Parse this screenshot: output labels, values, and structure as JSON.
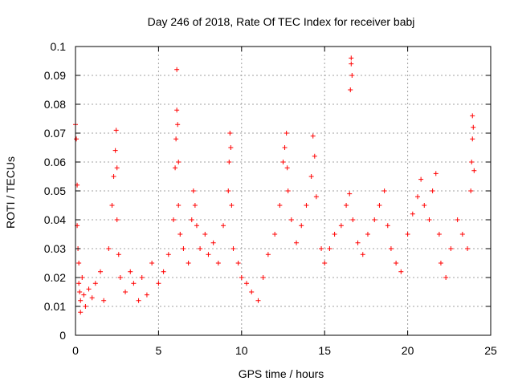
{
  "chart_data": {
    "type": "scatter",
    "title": "Day 246 of 2018, Rate Of TEC Index for receiver babj",
    "xlabel": "GPS time / hours",
    "ylabel": "ROTI / TECUs",
    "xlim": [
      0,
      25
    ],
    "ylim": [
      0,
      0.1
    ],
    "x_ticks": [
      0,
      5,
      10,
      15,
      20,
      25
    ],
    "x_tick_labels": [
      "0",
      "5",
      "10",
      "15",
      "20",
      "25"
    ],
    "y_ticks": [
      0,
      0.01,
      0.02,
      0.03,
      0.04,
      0.05,
      0.06,
      0.07,
      0.08,
      0.09,
      0.1
    ],
    "y_tick_labels": [
      "0",
      "0.01",
      "0.02",
      "0.03",
      "0.04",
      "0.05",
      "0.06",
      "0.07",
      "0.08",
      "0.09",
      "0.1"
    ],
    "grid": true,
    "legend": "none",
    "marker": "plus",
    "marker_color": "#ff0000",
    "series": [
      {
        "x": [
          0.0,
          0.05,
          0.1,
          0.1,
          0.15,
          0.2,
          0.2,
          0.25,
          0.3,
          0.3,
          0.4,
          0.5,
          0.6,
          0.8,
          1.0,
          1.2,
          1.5,
          1.7,
          2.0,
          2.2,
          2.3,
          2.4,
          2.45,
          2.5,
          2.5,
          2.6,
          2.7,
          3.0,
          3.3,
          3.5,
          3.8,
          4.0,
          4.3,
          4.6,
          5.0,
          5.3,
          5.6,
          5.9,
          6.0,
          6.05,
          6.1,
          6.1,
          6.15,
          6.2,
          6.2,
          6.3,
          6.5,
          6.8,
          7.0,
          7.1,
          7.2,
          7.3,
          7.5,
          7.8,
          8.0,
          8.3,
          8.6,
          8.9,
          9.2,
          9.25,
          9.3,
          9.35,
          9.4,
          9.5,
          9.8,
          10.0,
          10.3,
          10.6,
          11.0,
          11.3,
          11.6,
          12.0,
          12.3,
          12.5,
          12.6,
          12.7,
          12.75,
          12.8,
          13.0,
          13.3,
          13.6,
          13.9,
          14.2,
          14.3,
          14.4,
          14.5,
          14.8,
          15.0,
          15.3,
          15.6,
          16.0,
          16.3,
          16.5,
          16.55,
          16.6,
          16.6,
          16.65,
          16.7,
          17.0,
          17.3,
          17.6,
          18.0,
          18.3,
          18.6,
          18.8,
          19.0,
          19.3,
          19.6,
          20.0,
          20.3,
          20.6,
          20.8,
          21.0,
          21.3,
          21.5,
          21.7,
          21.9,
          22.0,
          22.3,
          22.6,
          23.0,
          23.3,
          23.6,
          23.8,
          23.85,
          23.9,
          23.9,
          23.95,
          24.0
        ],
        "y": [
          0.073,
          0.068,
          0.052,
          0.038,
          0.03,
          0.025,
          0.018,
          0.015,
          0.012,
          0.008,
          0.02,
          0.014,
          0.01,
          0.016,
          0.013,
          0.018,
          0.022,
          0.012,
          0.03,
          0.045,
          0.055,
          0.064,
          0.071,
          0.058,
          0.04,
          0.028,
          0.02,
          0.015,
          0.022,
          0.018,
          0.012,
          0.02,
          0.014,
          0.025,
          0.018,
          0.022,
          0.028,
          0.04,
          0.058,
          0.068,
          0.078,
          0.092,
          0.073,
          0.06,
          0.045,
          0.035,
          0.03,
          0.025,
          0.04,
          0.05,
          0.045,
          0.038,
          0.03,
          0.035,
          0.028,
          0.032,
          0.025,
          0.038,
          0.05,
          0.06,
          0.07,
          0.065,
          0.045,
          0.03,
          0.025,
          0.02,
          0.018,
          0.015,
          0.012,
          0.02,
          0.028,
          0.035,
          0.045,
          0.06,
          0.065,
          0.07,
          0.058,
          0.05,
          0.04,
          0.032,
          0.038,
          0.045,
          0.055,
          0.069,
          0.062,
          0.048,
          0.03,
          0.025,
          0.03,
          0.035,
          0.038,
          0.045,
          0.049,
          0.085,
          0.094,
          0.096,
          0.09,
          0.04,
          0.032,
          0.028,
          0.035,
          0.04,
          0.045,
          0.05,
          0.038,
          0.03,
          0.025,
          0.022,
          0.035,
          0.042,
          0.048,
          0.054,
          0.045,
          0.04,
          0.05,
          0.056,
          0.035,
          0.025,
          0.02,
          0.03,
          0.04,
          0.035,
          0.03,
          0.05,
          0.06,
          0.068,
          0.076,
          0.072,
          0.057
        ]
      }
    ]
  }
}
